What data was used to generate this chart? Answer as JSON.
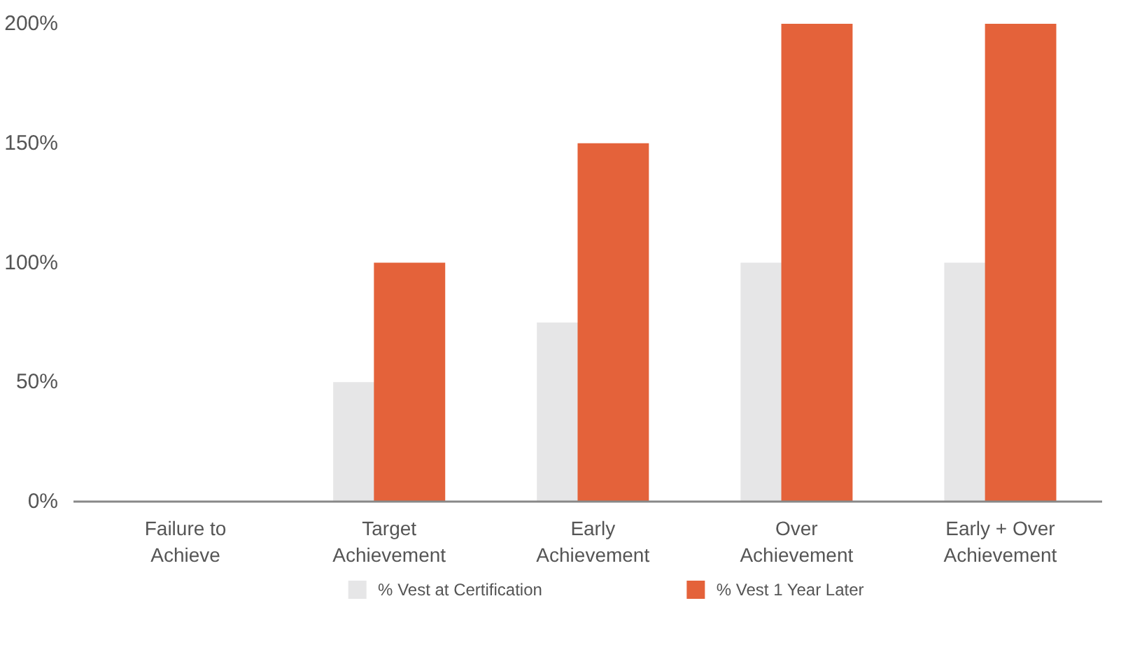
{
  "chart_data": {
    "type": "bar",
    "categories": [
      "Failure to\nAchieve",
      "Target\nAchievement",
      "Early\nAchievement",
      "Over\nAchievement",
      "Early + Over\nAchievement"
    ],
    "series": [
      {
        "name": "% Vest at Certification",
        "color": "#e6e6e7",
        "values": [
          0,
          50,
          75,
          100,
          100
        ]
      },
      {
        "name": "% Vest 1 Year Later",
        "color": "#e4623a",
        "values": [
          0,
          100,
          150,
          200,
          200
        ]
      }
    ],
    "ylim": [
      0,
      200
    ],
    "yticks": [
      {
        "value": 0,
        "label": "0%"
      },
      {
        "value": 50,
        "label": "50%"
      },
      {
        "value": 100,
        "label": "100%"
      },
      {
        "value": 150,
        "label": "150%"
      },
      {
        "value": 200,
        "label": "200%"
      }
    ],
    "grid": false,
    "legend": "bottom"
  }
}
